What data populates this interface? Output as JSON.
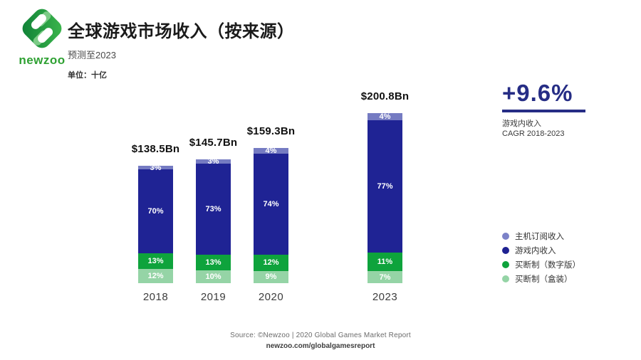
{
  "header": {
    "logo_text": "newzoo",
    "title": "全球游戏市场收入（按来源）",
    "subtitle": "预测至2023",
    "unit": "单位：十亿"
  },
  "highlight": {
    "value": "+9.6%",
    "caption_line1": "游戏内收入",
    "caption_line2": "CAGR 2018-2023"
  },
  "legend": [
    {
      "label": "主机订阅收入",
      "color": "#7c82c8"
    },
    {
      "label": "游戏内收入",
      "color": "#1e2191"
    },
    {
      "label": "买断制（数字版）",
      "color": "#0ea33c"
    },
    {
      "label": "买断制（盒装）",
      "color": "#95d4a6"
    }
  ],
  "footer": {
    "source": "Source: ©Newzoo | 2020 Global Games Market Report",
    "url": "newzoo.com/globalgamesreport"
  },
  "chart_data": {
    "type": "bar",
    "stacked": true,
    "title": "全球游戏市场收入（按来源）",
    "unit": "十亿 (Billions USD)",
    "categories": [
      "2018",
      "2019",
      "2020",
      "2023"
    ],
    "totals_bn": [
      138.5,
      145.7,
      159.3,
      200.8
    ],
    "totals_label": [
      "$138.5Bn",
      "$145.7Bn",
      "$159.3Bn",
      "$200.8Bn"
    ],
    "series": [
      {
        "name": "主机订阅收入",
        "color": "#757bc2",
        "values_pct": [
          3,
          3,
          4,
          4
        ]
      },
      {
        "name": "游戏内收入",
        "color": "#1f2394",
        "values_pct": [
          70,
          73,
          74,
          77
        ]
      },
      {
        "name": "买断制（数字版）",
        "color": "#0ea33c",
        "values_pct": [
          13,
          13,
          12,
          11
        ]
      },
      {
        "name": "买断制（盒装）",
        "color": "#95d4a6",
        "values_pct": [
          12,
          10,
          9,
          7
        ]
      }
    ],
    "legend_position": "right",
    "grid": false,
    "highlight": {
      "value": "+9.6%",
      "caption": "游戏内收入 CAGR 2018-2023"
    }
  }
}
